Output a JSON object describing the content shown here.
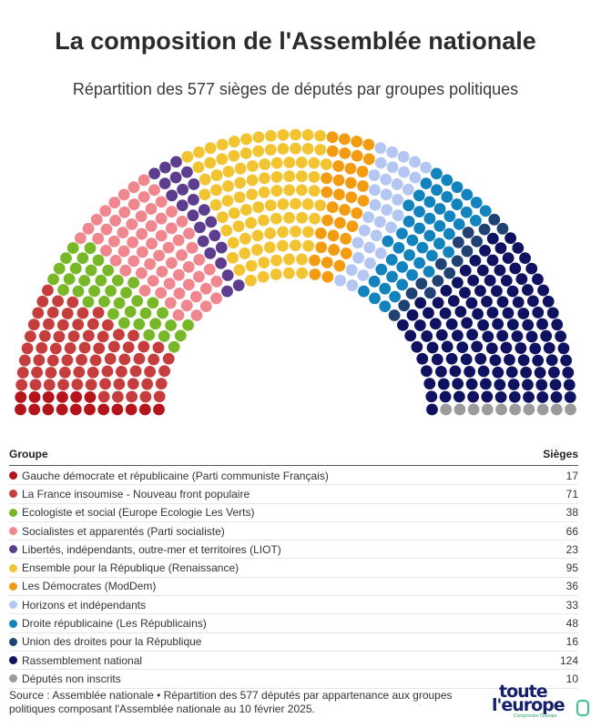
{
  "title": "La composition de l'Assemblée nationale",
  "subtitle": "Répartition des 577 sièges de députés par groupes politiques",
  "table": {
    "col_group": "Groupe",
    "col_seats": "Sièges"
  },
  "chart_data": {
    "type": "parliament",
    "title": "La composition de l'Assemblée nationale",
    "subtitle": "Répartition des 577 sièges de députés par groupes politiques",
    "total": 577,
    "series": [
      {
        "name": "Gauche démocrate et républicaine (Parti communiste Français)",
        "value": 17,
        "color": "#b5141b"
      },
      {
        "name": "La France insoumise - Nouveau front populaire",
        "value": 71,
        "color": "#c63d3d"
      },
      {
        "name": "Ecologiste et social (Europe Ecologie Les Verts)",
        "value": 38,
        "color": "#78b828"
      },
      {
        "name": "Socialistes et apparentés (Parti socialiste)",
        "value": 66,
        "color": "#f0878e"
      },
      {
        "name": "Libertés, indépendants, outre-mer et territoires (LIOT)",
        "value": 23,
        "color": "#5d3d8e"
      },
      {
        "name": "Ensemble pour la République (Renaissance)",
        "value": 95,
        "color": "#f2c432"
      },
      {
        "name": "Les Démocrates (ModDem)",
        "value": 36,
        "color": "#f39c12"
      },
      {
        "name": "Horizons et indépendants",
        "value": 33,
        "color": "#b4c7f2"
      },
      {
        "name": "Droite républicaine (Les Républicains)",
        "value": 48,
        "color": "#1383bd"
      },
      {
        "name": "Union des droites pour la République",
        "value": 16,
        "color": "#1f4272"
      },
      {
        "name": "Rassemblement national",
        "value": 124,
        "color": "#0f1260"
      },
      {
        "name": "Députés non inscrits",
        "value": 10,
        "color": "#9b9b9b"
      }
    ]
  },
  "source": "Source : Assemblée nationale • Répartition des 577 députés par appartenance aux groupes politiques composant l'Assemblée nationale au 10 février 2025.",
  "logo": {
    "line1": "toute",
    "line2": "l'europe",
    "tagline": "Comprendre l'Europe"
  }
}
